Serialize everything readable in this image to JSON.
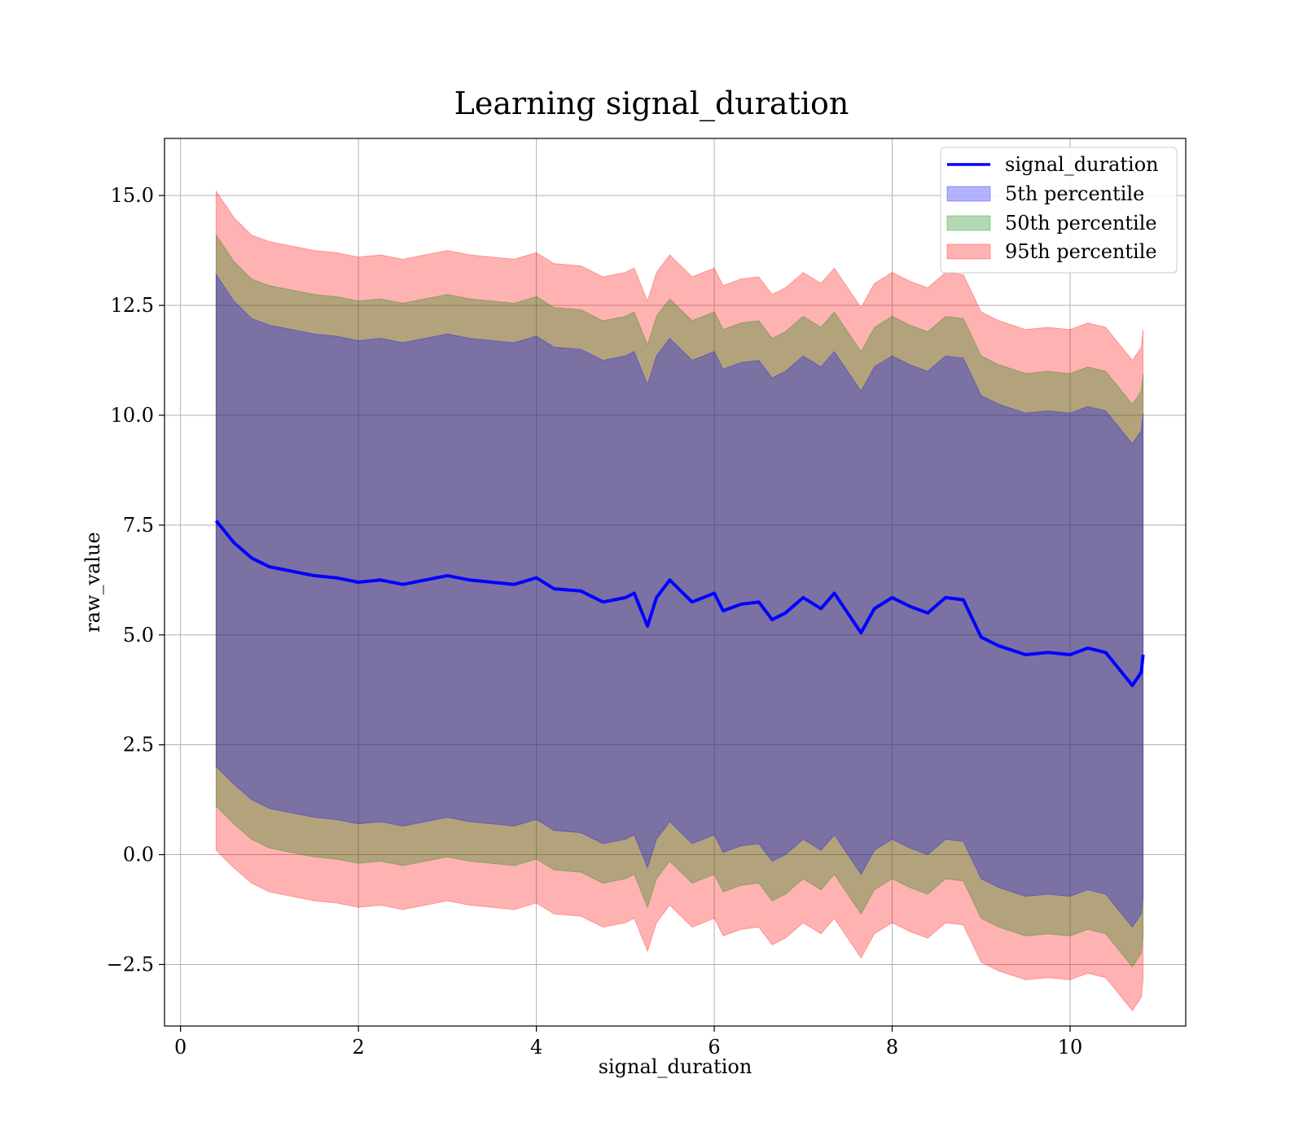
{
  "chart_data": {
    "type": "area",
    "title": "Learning signal_duration",
    "xlabel": "signal_duration",
    "ylabel": "raw_value",
    "xlim": [
      -0.18,
      11.3
    ],
    "ylim": [
      -3.9,
      16.3
    ],
    "x_ticks": [
      0,
      2,
      4,
      6,
      8,
      10
    ],
    "y_ticks": [
      -2.5,
      0.0,
      2.5,
      5.0,
      7.5,
      10.0,
      12.5,
      15.0
    ],
    "x_tick_labels": [
      "0",
      "2",
      "4",
      "6",
      "8",
      "10"
    ],
    "y_tick_labels": [
      "−2.5",
      "0.0",
      "2.5",
      "5.0",
      "7.5",
      "10.0",
      "12.5",
      "15.0"
    ],
    "grid": true,
    "legend": {
      "position": "top-right",
      "entries": [
        {
          "label": "signal_duration",
          "kind": "line",
          "color": "#0000ff"
        },
        {
          "label": "5th percentile",
          "kind": "patch",
          "color": "#0000ff"
        },
        {
          "label": "50th percentile",
          "kind": "patch",
          "color": "#008000"
        },
        {
          "label": "95th percentile",
          "kind": "patch",
          "color": "#ff0000"
        }
      ]
    },
    "x": [
      0.4,
      0.6,
      0.8,
      1.0,
      1.25,
      1.5,
      1.75,
      2.0,
      2.25,
      2.5,
      2.75,
      3.0,
      3.25,
      3.5,
      3.75,
      4.0,
      4.2,
      4.5,
      4.75,
      5.0,
      5.1,
      5.25,
      5.35,
      5.5,
      5.75,
      6.0,
      6.1,
      6.3,
      6.5,
      6.65,
      6.8,
      7.0,
      7.2,
      7.35,
      7.5,
      7.65,
      7.8,
      8.0,
      8.2,
      8.4,
      8.6,
      8.8,
      9.0,
      9.2,
      9.5,
      9.75,
      10.0,
      10.2,
      10.4,
      10.5,
      10.6,
      10.7,
      10.8,
      10.82
    ],
    "mean": [
      7.6,
      7.1,
      6.75,
      6.55,
      6.45,
      6.35,
      6.3,
      6.2,
      6.25,
      6.15,
      6.25,
      6.35,
      6.25,
      6.2,
      6.15,
      6.3,
      6.05,
      6.0,
      5.75,
      5.85,
      5.95,
      5.2,
      5.85,
      6.25,
      5.75,
      5.95,
      5.55,
      5.7,
      5.75,
      5.35,
      5.5,
      5.85,
      5.6,
      5.95,
      5.5,
      5.05,
      5.6,
      5.85,
      5.65,
      5.5,
      5.85,
      5.8,
      4.95,
      4.75,
      4.55,
      4.6,
      4.55,
      4.7,
      4.6,
      4.35,
      4.1,
      3.85,
      4.15,
      4.55
    ],
    "series": [
      {
        "name": "95th percentile",
        "color": "#ff0000",
        "upper": [
          15.1,
          14.5,
          14.1,
          13.95,
          13.85,
          13.75,
          13.7,
          13.6,
          13.65,
          13.55,
          13.65,
          13.75,
          13.65,
          13.6,
          13.55,
          13.7,
          13.45,
          13.4,
          13.15,
          13.25,
          13.35,
          12.6,
          13.25,
          13.65,
          13.15,
          13.35,
          12.95,
          13.1,
          13.15,
          12.75,
          12.9,
          13.25,
          13.0,
          13.35,
          12.9,
          12.45,
          13.0,
          13.25,
          13.05,
          12.9,
          13.25,
          13.2,
          12.35,
          12.15,
          11.95,
          12.0,
          11.95,
          12.1,
          12.0,
          11.75,
          11.5,
          11.25,
          11.55,
          11.95
        ],
        "lower": [
          0.1,
          -0.3,
          -0.65,
          -0.85,
          -0.95,
          -1.05,
          -1.1,
          -1.2,
          -1.15,
          -1.25,
          -1.15,
          -1.05,
          -1.15,
          -1.2,
          -1.25,
          -1.1,
          -1.35,
          -1.4,
          -1.65,
          -1.55,
          -1.45,
          -2.2,
          -1.55,
          -1.15,
          -1.65,
          -1.45,
          -1.85,
          -1.7,
          -1.65,
          -2.05,
          -1.9,
          -1.55,
          -1.8,
          -1.45,
          -1.9,
          -2.35,
          -1.8,
          -1.55,
          -1.75,
          -1.9,
          -1.55,
          -1.6,
          -2.45,
          -2.65,
          -2.85,
          -2.8,
          -2.85,
          -2.7,
          -2.8,
          -3.05,
          -3.3,
          -3.55,
          -3.25,
          -2.85
        ]
      },
      {
        "name": "50th percentile",
        "color": "#008000",
        "upper": [
          14.1,
          13.5,
          13.1,
          12.95,
          12.85,
          12.75,
          12.7,
          12.6,
          12.65,
          12.55,
          12.65,
          12.75,
          12.65,
          12.6,
          12.55,
          12.7,
          12.45,
          12.4,
          12.15,
          12.25,
          12.35,
          11.6,
          12.25,
          12.65,
          12.15,
          12.35,
          11.95,
          12.1,
          12.15,
          11.75,
          11.9,
          12.25,
          12.0,
          12.35,
          11.9,
          11.45,
          12.0,
          12.25,
          12.05,
          11.9,
          12.25,
          12.2,
          11.35,
          11.15,
          10.95,
          11.0,
          10.95,
          11.1,
          11.0,
          10.75,
          10.5,
          10.25,
          10.55,
          10.95
        ],
        "lower": [
          1.1,
          0.7,
          0.35,
          0.15,
          0.05,
          -0.05,
          -0.1,
          -0.2,
          -0.15,
          -0.25,
          -0.15,
          -0.05,
          -0.15,
          -0.2,
          -0.25,
          -0.1,
          -0.35,
          -0.4,
          -0.65,
          -0.55,
          -0.45,
          -1.2,
          -0.55,
          -0.15,
          -0.65,
          -0.45,
          -0.85,
          -0.7,
          -0.65,
          -1.05,
          -0.9,
          -0.55,
          -0.8,
          -0.45,
          -0.9,
          -1.35,
          -0.8,
          -0.55,
          -0.75,
          -0.9,
          -0.55,
          -0.6,
          -1.45,
          -1.65,
          -1.85,
          -1.8,
          -1.85,
          -1.7,
          -1.8,
          -2.05,
          -2.3,
          -2.55,
          -2.25,
          -1.85
        ]
      },
      {
        "name": "5th percentile",
        "color": "#0000ff",
        "upper": [
          13.2,
          12.6,
          12.2,
          12.05,
          11.95,
          11.85,
          11.8,
          11.7,
          11.75,
          11.65,
          11.75,
          11.85,
          11.75,
          11.7,
          11.65,
          11.8,
          11.55,
          11.5,
          11.25,
          11.35,
          11.45,
          10.7,
          11.35,
          11.75,
          11.25,
          11.45,
          11.05,
          11.2,
          11.25,
          10.85,
          11.0,
          11.35,
          11.1,
          11.45,
          11.0,
          10.55,
          11.1,
          11.35,
          11.15,
          11.0,
          11.35,
          11.3,
          10.45,
          10.25,
          10.05,
          10.1,
          10.05,
          10.2,
          10.1,
          9.85,
          9.6,
          9.35,
          9.65,
          10.05
        ],
        "lower": [
          2.0,
          1.6,
          1.25,
          1.05,
          0.95,
          0.85,
          0.8,
          0.7,
          0.75,
          0.65,
          0.75,
          0.85,
          0.75,
          0.7,
          0.65,
          0.8,
          0.55,
          0.5,
          0.25,
          0.35,
          0.45,
          -0.3,
          0.35,
          0.75,
          0.25,
          0.45,
          0.05,
          0.2,
          0.25,
          -0.15,
          0.0,
          0.35,
          0.1,
          0.45,
          0.0,
          -0.45,
          0.1,
          0.35,
          0.15,
          0.0,
          0.35,
          0.3,
          -0.55,
          -0.75,
          -0.95,
          -0.9,
          -0.95,
          -0.8,
          -0.9,
          -1.15,
          -1.4,
          -1.65,
          -1.35,
          -0.95
        ]
      }
    ]
  }
}
